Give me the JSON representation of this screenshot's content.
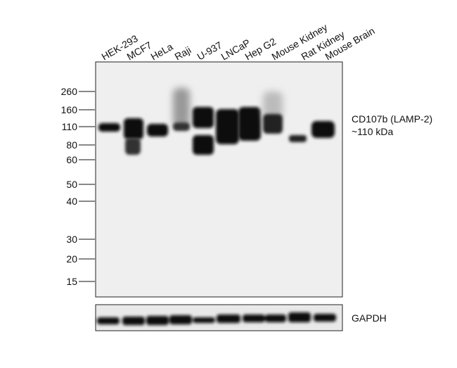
{
  "lanes": [
    "HEK-293",
    "MCF7",
    "HeLa",
    "Raji",
    "U-937",
    "LNCaP",
    "Hep G2",
    "Mouse Kidney",
    "Rat Kidney",
    "Mouse Brain"
  ],
  "markers": [
    260,
    160,
    110,
    80,
    60,
    50,
    40,
    30,
    20,
    15
  ],
  "target": {
    "name": "CD107b (LAMP-2)",
    "size": "~110 kDa"
  },
  "loading_control": "GAPDH"
}
